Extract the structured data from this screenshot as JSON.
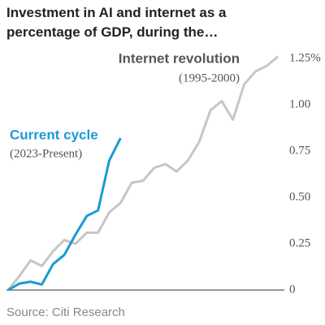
{
  "chart_data": {
    "type": "line",
    "title": "Investment in AI and internet as a percentage of GDP, during the…",
    "source": "Source: Citi Research",
    "categories": [
      null,
      null,
      null,
      null,
      null,
      null,
      null,
      null,
      null,
      null,
      null,
      null,
      null,
      null,
      null,
      null,
      null,
      null,
      null,
      null,
      null,
      null,
      null,
      null,
      null
    ],
    "series": [
      {
        "name": "Internet revolution",
        "color": "#c6c6c6",
        "values": [
          0,
          0.075,
          0.16,
          0.13,
          0.21,
          0.27,
          0.25,
          0.31,
          0.31,
          0.42,
          0.47,
          0.58,
          0.59,
          0.66,
          0.68,
          0.64,
          0.7,
          0.8,
          0.97,
          1.02,
          0.92,
          1.11,
          1.18,
          1.21,
          1.26
        ]
      },
      {
        "name": "Current cycle",
        "color": "#1a9ad6",
        "values": [
          0,
          0.035,
          0.045,
          0.03,
          0.14,
          0.19,
          0.3,
          0.4,
          0.43,
          0.7,
          0.82,
          null,
          null,
          null,
          null,
          null,
          null,
          null,
          null,
          null,
          null,
          null,
          null,
          null,
          null
        ]
      }
    ],
    "annotations": [
      "(1995-2000)",
      "(2023-Present)"
    ],
    "ylim": [
      0,
      1.3
    ],
    "yticks": [
      0,
      0.25,
      {
        "value": 0.5,
        "label": "0.50"
      },
      0.75,
      {
        "value": 1,
        "label": "1.00"
      },
      {
        "value": 1.25,
        "label": "1.25%"
      }
    ],
    "grid": false
  }
}
